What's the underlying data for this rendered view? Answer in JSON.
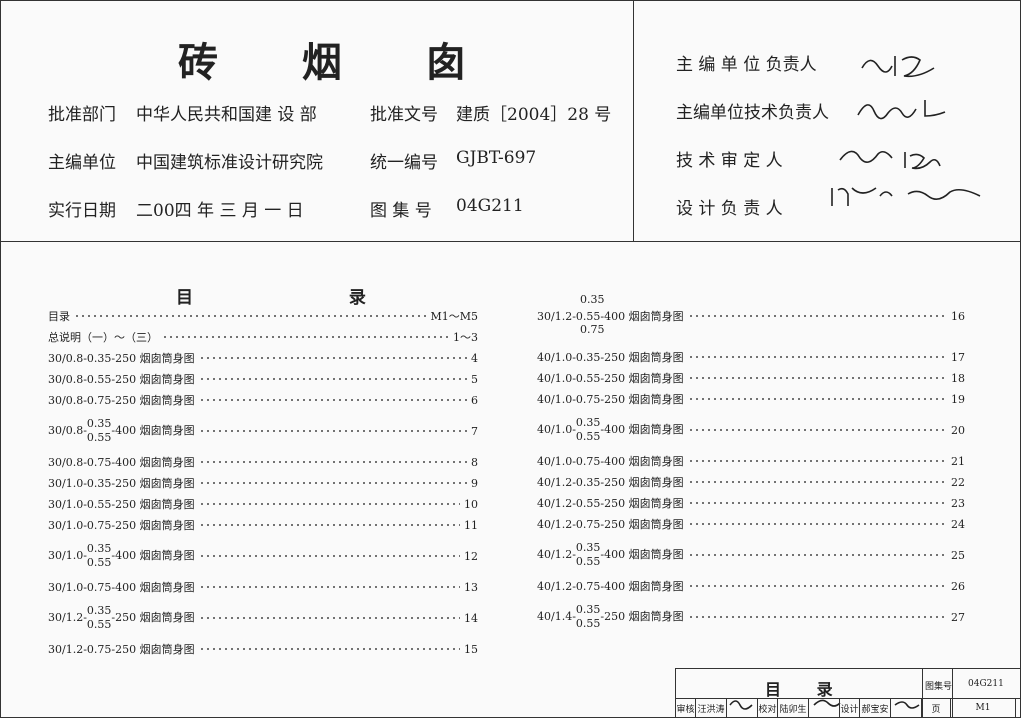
{
  "header": {
    "title": "砖 烟 囱",
    "rows": [
      {
        "label": "批准部门",
        "value": "中华人民共和国建 设 部",
        "label2": "批准文号",
        "value2": "建质［2004］28 号"
      },
      {
        "label": "主编单位",
        "value": "中国建筑标准设计研究院",
        "label2": "统一编号",
        "value2": "GJBT-697"
      },
      {
        "label": "实行日期",
        "value": "二00四 年 三 月 一 日",
        "label2": "图 集 号",
        "value2": "04G211"
      }
    ]
  },
  "signatories": [
    "主 编 单 位 负责人",
    "主编单位技术负责人",
    "技 术 审 定 人",
    "设 计 负 责 人"
  ],
  "contents": {
    "title": "目 录",
    "left": [
      {
        "text": "目录",
        "page": "M1～M5"
      },
      {
        "text": "总说明（一）～（三）",
        "page": "1～3"
      },
      {
        "text": "30/0.8-0.35-250 烟囱筒身图",
        "page": "4"
      },
      {
        "text": "30/0.8-0.55-250 烟囱筒身图",
        "page": "5"
      },
      {
        "text": "30/0.8-0.75-250 烟囱筒身图",
        "page": "6"
      },
      {
        "pre": "30/0.8-",
        "over": "0.35",
        "under": "0.55",
        "post": "-400 烟囱筒身图",
        "page": "7"
      },
      {
        "text": "30/0.8-0.75-400 烟囱筒身图",
        "page": "8"
      },
      {
        "text": "30/1.0-0.35-250 烟囱筒身图",
        "page": "9"
      },
      {
        "text": "30/1.0-0.55-250 烟囱筒身图",
        "page": "10"
      },
      {
        "text": "30/1.0-0.75-250 烟囱筒身图",
        "page": "11"
      },
      {
        "pre": "30/1.0-",
        "over": "0.35",
        "under": "0.55",
        "post": "-400 烟囱筒身图",
        "page": "12"
      },
      {
        "text": "30/1.0-0.75-400 烟囱筒身图",
        "page": "13"
      },
      {
        "pre": "30/1.2-",
        "over": "0.35",
        "under": "0.55",
        "post": "-250 烟囱筒身图",
        "page": "14"
      },
      {
        "text": "30/1.2-0.75-250 烟囱筒身图",
        "page": "15"
      }
    ],
    "right": [
      {
        "over": "0.35",
        "text": "30/1.2-0.55-400 烟囱筒身图",
        "under": "0.75",
        "page": "16"
      },
      {
        "text": "40/1.0-0.35-250 烟囱筒身图",
        "page": "17"
      },
      {
        "text": "40/1.0-0.55-250 烟囱筒身图",
        "page": "18"
      },
      {
        "text": "40/1.0-0.75-250 烟囱筒身图",
        "page": "19"
      },
      {
        "pre": "40/1.0-",
        "over": "0.35",
        "under": "0.55",
        "post": "-400 烟囱筒身图",
        "page": "20"
      },
      {
        "text": "40/1.0-0.75-400 烟囱筒身图",
        "page": "21"
      },
      {
        "text": "40/1.2-0.35-250 烟囱筒身图",
        "page": "22"
      },
      {
        "text": "40/1.2-0.55-250 烟囱筒身图",
        "page": "23"
      },
      {
        "text": "40/1.2-0.75-250 烟囱筒身图",
        "page": "24"
      },
      {
        "pre": "40/1.2-",
        "over": "0.35",
        "under": "0.55",
        "post": "-400 烟囱筒身图",
        "page": "25"
      },
      {
        "text": "40/1.2-0.75-400 烟囱筒身图",
        "page": "26"
      },
      {
        "pre": "40/1.4-",
        "over": "0.35",
        "under": "0.55",
        "post": "-250 烟囱筒身图",
        "page": "27"
      }
    ]
  },
  "title_block": {
    "title": "目 录",
    "atlas_label": "图集号",
    "atlas_no": "04G211",
    "roles": [
      {
        "role": "审核",
        "name": "汪洪涛"
      },
      {
        "role": "校对",
        "name": "陆卯生"
      },
      {
        "role": "设计",
        "name": "郝宝安"
      }
    ],
    "page_label": "页",
    "page": "M1"
  }
}
